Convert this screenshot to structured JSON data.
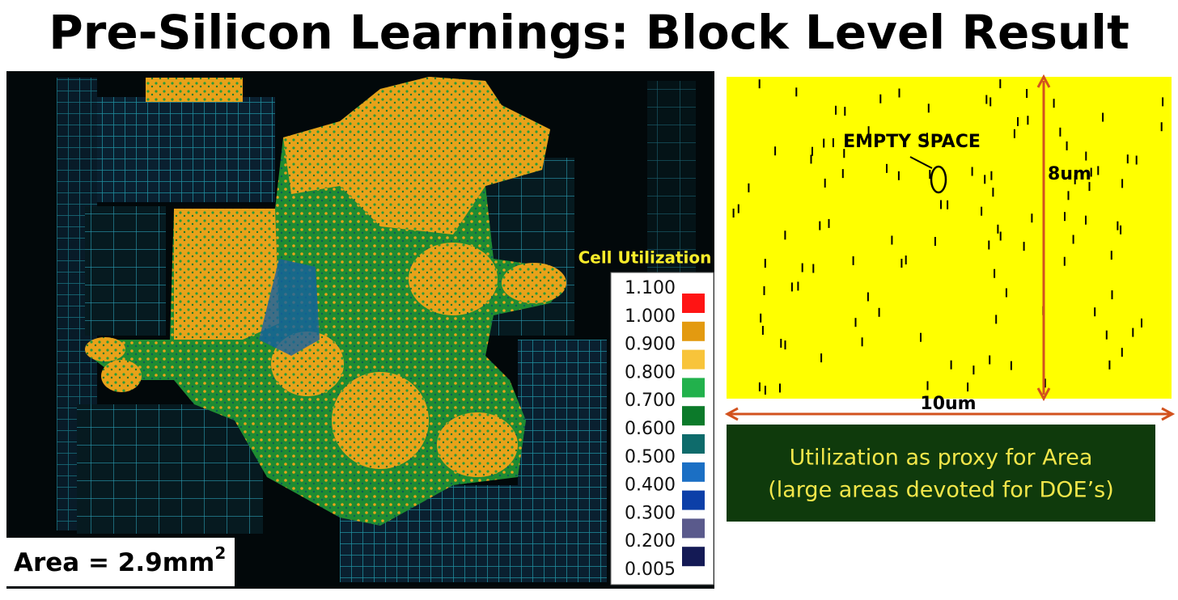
{
  "title": "Pre-Silicon Learnings: Block Level Result",
  "layout_panel": {
    "area_label": "Area = 2.9mm",
    "area_exponent": "2"
  },
  "legend": {
    "title": "Cell Utilization",
    "labels": [
      "1.100",
      "1.000",
      "0.900",
      "0.800",
      "0.700",
      "0.600",
      "0.500",
      "0.400",
      "0.300",
      "0.200",
      "0.005"
    ],
    "colors": [
      "#ff1414",
      "#e39a10",
      "#f8c43a",
      "#22b14c",
      "#0c7a2a",
      "#0e6b6b",
      "#1b6fc4",
      "#0c3fa8",
      "#5a5a8c",
      "#141a55"
    ]
  },
  "zoom_panel": {
    "annotation": "EMPTY SPACE",
    "height_label": "8um",
    "width_label": "10um"
  },
  "callout": {
    "lines": [
      "Utilization as proxy for Area",
      "(large areas devoted for DOE’s)"
    ]
  }
}
